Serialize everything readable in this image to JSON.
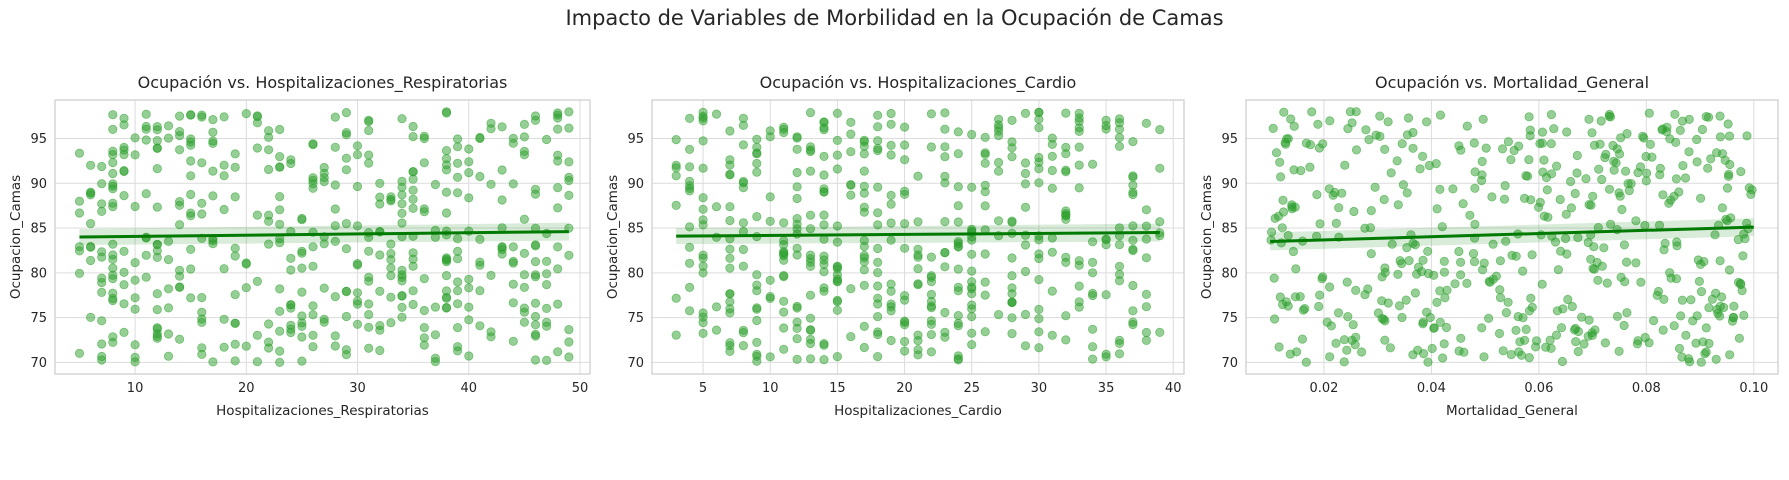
{
  "figure": {
    "suptitle": "Impacto de Variables de Morbilidad en la Ocupación de Camas"
  },
  "chart_data": [
    {
      "type": "scatter",
      "title": "Ocupación vs. Hospitalizaciones_Respiratorias",
      "xlabel": "Hospitalizaciones_Respiratorias",
      "ylabel": "Ocupacion_Camas",
      "xlim": [
        2.8,
        50.9
      ],
      "ylim": [
        68.7,
        99.3
      ],
      "xticks": [
        10,
        20,
        30,
        40,
        50
      ],
      "xtick_labels": [
        "10",
        "20",
        "30",
        "40",
        "50"
      ],
      "yticks": [
        70,
        75,
        80,
        85,
        90,
        95
      ],
      "ytick_labels": [
        "70",
        "75",
        "80",
        "85",
        "90",
        "95"
      ],
      "x_range": [
        5,
        49
      ],
      "x_integer": true,
      "n_points": 500,
      "point_color": "#2ca02c",
      "regression": {
        "x": [
          5,
          49
        ],
        "y": [
          84.0,
          84.6
        ],
        "ci_halfwidth": [
          0.9,
          1.0
        ],
        "color": "#007a00"
      },
      "grid": true,
      "legend": "none"
    },
    {
      "type": "scatter",
      "title": "Ocupación vs. Hospitalizaciones_Cardio",
      "xlabel": "Hospitalizaciones_Cardio",
      "ylabel": "Ocupacion_Camas",
      "xlim": [
        1.2,
        40.8
      ],
      "ylim": [
        68.7,
        99.3
      ],
      "xticks": [
        5,
        10,
        15,
        20,
        25,
        30,
        35,
        40
      ],
      "xtick_labels": [
        "5",
        "10",
        "15",
        "20",
        "25",
        "30",
        "35",
        "40"
      ],
      "yticks": [
        70,
        75,
        80,
        85,
        90,
        95
      ],
      "ytick_labels": [
        "70",
        "75",
        "80",
        "85",
        "90",
        "95"
      ],
      "x_range": [
        3,
        39
      ],
      "x_integer": true,
      "n_points": 500,
      "point_color": "#2ca02c",
      "regression": {
        "x": [
          3,
          39
        ],
        "y": [
          84.1,
          84.5
        ],
        "ci_halfwidth": [
          0.9,
          1.0
        ],
        "color": "#007a00"
      },
      "grid": true,
      "legend": "none"
    },
    {
      "type": "scatter",
      "title": "Ocupación vs. Mortalidad_General",
      "xlabel": "Mortalidad_General",
      "ylabel": "Ocupacion_Camas",
      "xlim": [
        0.0055,
        0.1045
      ],
      "ylim": [
        68.7,
        99.3
      ],
      "xticks": [
        0.02,
        0.04,
        0.06,
        0.08,
        0.1
      ],
      "xtick_labels": [
        "0.02",
        "0.04",
        "0.06",
        "0.08",
        "0.10"
      ],
      "yticks": [
        70,
        75,
        80,
        85,
        90,
        95
      ],
      "ytick_labels": [
        "70",
        "75",
        "80",
        "85",
        "90",
        "95"
      ],
      "x_range": [
        0.01,
        0.1
      ],
      "x_integer": false,
      "n_points": 500,
      "point_color": "#2ca02c",
      "regression": {
        "x": [
          0.01,
          0.1
        ],
        "y": [
          83.5,
          85.1
        ],
        "ci_halfwidth": [
          1.0,
          1.0
        ],
        "color": "#007a00"
      },
      "grid": true,
      "legend": "none"
    }
  ]
}
